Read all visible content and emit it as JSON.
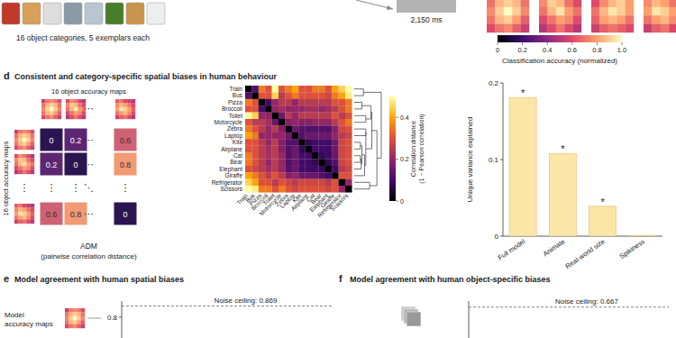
{
  "panel_c": {
    "stimuli_caption": "16 object categories, 5 exemplars each",
    "duration": "2,150 ms",
    "accuracy_maps": [
      [
        [
          0.55,
          0.7,
          0.75,
          0.7,
          0.6
        ],
        [
          0.7,
          0.85,
          0.9,
          0.85,
          0.7
        ],
        [
          0.75,
          0.9,
          1,
          0.9,
          0.75
        ],
        [
          0.7,
          0.85,
          0.9,
          0.8,
          0.65
        ],
        [
          0.6,
          0.7,
          0.75,
          0.65,
          0.55
        ]
      ],
      [
        [
          0.6,
          0.75,
          0.7,
          0.6,
          0.5
        ],
        [
          0.75,
          0.9,
          0.85,
          0.7,
          0.6
        ],
        [
          0.7,
          0.85,
          0.95,
          0.8,
          0.7
        ],
        [
          0.6,
          0.7,
          0.8,
          0.75,
          0.6
        ],
        [
          0.5,
          0.6,
          0.7,
          0.6,
          0.5
        ]
      ],
      [
        [
          0.5,
          0.6,
          0.7,
          0.75,
          0.7
        ],
        [
          0.6,
          0.75,
          0.85,
          0.9,
          0.8
        ],
        [
          0.7,
          0.85,
          0.95,
          0.9,
          0.8
        ],
        [
          0.65,
          0.8,
          0.85,
          0.8,
          0.7
        ],
        [
          0.55,
          0.65,
          0.7,
          0.65,
          0.6
        ]
      ],
      [
        [
          0.65,
          0.7,
          0.6,
          0.55,
          0.5
        ],
        [
          0.75,
          0.85,
          0.8,
          0.7,
          0.6
        ],
        [
          0.8,
          0.95,
          0.9,
          0.8,
          0.65
        ],
        [
          0.7,
          0.8,
          0.85,
          0.75,
          0.6
        ],
        [
          0.55,
          0.65,
          0.7,
          0.6,
          0.5
        ]
      ]
    ],
    "colorbar": {
      "label": "Classification accuracy (normalized)",
      "range": [
        0,
        1
      ],
      "ticks": [
        0,
        0.2,
        0.4,
        0.6,
        0.8,
        {
          "value": 1,
          "label": "1.0"
        }
      ]
    }
  },
  "panel_d": {
    "letter": "d",
    "title": "Consistent and category-specific spatial biases in human behaviour",
    "adm_schematic": {
      "top_label": "16 object accuracy maps",
      "side_label": "16 object accuracy maps",
      "rows": [
        [
          0,
          0.2,
          0.6
        ],
        [
          0.2,
          0,
          0.8
        ],
        [
          0.6,
          0.8,
          0
        ]
      ],
      "ellipsis_h": "⋯",
      "ellipsis_v": "⋮",
      "ellipsis_d": "⋱",
      "caption": "ADM",
      "caption_sub": "(pairwise correlation distance)"
    }
  },
  "panel_e": {
    "letter": "e",
    "title": "Model agreement with human spatial biases",
    "side_label": [
      "Model",
      "accuracy maps"
    ]
  },
  "panel_f": {
    "letter": "f",
    "title": "Model agreement with human object-specific biases"
  },
  "chart_data": [
    {
      "type": "heatmap",
      "categories": [
        "Train",
        "Bus",
        "Pizza",
        "Broccoli",
        "Toilet",
        "Motorcycle",
        "Zebra",
        "Laptop",
        "Kite",
        "Airplane",
        "Cat",
        "Bear",
        "Elephant",
        "Giraffe",
        "Refrigerator",
        "Scissors"
      ],
      "values": [
        [
          0,
          0.12,
          0.35,
          0.3,
          0.5,
          0.3,
          0.35,
          0.4,
          0.3,
          0.3,
          0.35,
          0.35,
          0.3,
          0.4,
          0.45,
          0.5
        ],
        [
          0.12,
          0,
          0.3,
          0.3,
          0.45,
          0.25,
          0.3,
          0.35,
          0.3,
          0.3,
          0.3,
          0.3,
          0.28,
          0.35,
          0.4,
          0.48
        ],
        [
          0.35,
          0.3,
          0,
          0.1,
          0.2,
          0.25,
          0.25,
          0.2,
          0.25,
          0.25,
          0.25,
          0.25,
          0.25,
          0.3,
          0.3,
          0.35
        ],
        [
          0.3,
          0.3,
          0.1,
          0,
          0.2,
          0.22,
          0.2,
          0.2,
          0.2,
          0.22,
          0.22,
          0.2,
          0.22,
          0.25,
          0.3,
          0.35
        ],
        [
          0.5,
          0.45,
          0.2,
          0.2,
          0,
          0.15,
          0.25,
          0.2,
          0.25,
          0.25,
          0.25,
          0.25,
          0.25,
          0.3,
          0.25,
          0.3
        ],
        [
          0.3,
          0.25,
          0.25,
          0.22,
          0.15,
          0,
          0.18,
          0.2,
          0.18,
          0.18,
          0.2,
          0.2,
          0.2,
          0.25,
          0.3,
          0.35
        ],
        [
          0.35,
          0.3,
          0.25,
          0.2,
          0.25,
          0.18,
          0,
          0.15,
          0.12,
          0.12,
          0.12,
          0.12,
          0.12,
          0.18,
          0.28,
          0.3
        ],
        [
          0.4,
          0.35,
          0.2,
          0.2,
          0.2,
          0.2,
          0.15,
          0,
          0.12,
          0.15,
          0.15,
          0.15,
          0.15,
          0.2,
          0.25,
          0.28
        ],
        [
          0.3,
          0.3,
          0.25,
          0.2,
          0.25,
          0.18,
          0.12,
          0.12,
          0,
          0.08,
          0.1,
          0.1,
          0.1,
          0.15,
          0.28,
          0.3
        ],
        [
          0.3,
          0.3,
          0.25,
          0.22,
          0.25,
          0.18,
          0.12,
          0.15,
          0.08,
          0,
          0.1,
          0.1,
          0.1,
          0.15,
          0.28,
          0.3
        ],
        [
          0.35,
          0.3,
          0.25,
          0.22,
          0.25,
          0.2,
          0.12,
          0.15,
          0.1,
          0.1,
          0,
          0.08,
          0.1,
          0.15,
          0.28,
          0.3
        ],
        [
          0.35,
          0.3,
          0.25,
          0.2,
          0.25,
          0.2,
          0.12,
          0.15,
          0.1,
          0.1,
          0.08,
          0,
          0.08,
          0.12,
          0.28,
          0.3
        ],
        [
          0.3,
          0.28,
          0.25,
          0.22,
          0.25,
          0.2,
          0.12,
          0.15,
          0.1,
          0.1,
          0.1,
          0.08,
          0,
          0.1,
          0.25,
          0.28
        ],
        [
          0.4,
          0.35,
          0.3,
          0.25,
          0.3,
          0.25,
          0.18,
          0.2,
          0.15,
          0.15,
          0.15,
          0.12,
          0.1,
          0,
          0.3,
          0.3
        ],
        [
          0.45,
          0.4,
          0.3,
          0.3,
          0.25,
          0.3,
          0.28,
          0.25,
          0.28,
          0.28,
          0.28,
          0.28,
          0.25,
          0.3,
          0,
          0.2
        ],
        [
          0.5,
          0.48,
          0.35,
          0.35,
          0.3,
          0.35,
          0.3,
          0.28,
          0.3,
          0.3,
          0.3,
          0.3,
          0.28,
          0.3,
          0.2,
          0
        ]
      ],
      "colorbar": {
        "label": [
          "Correlation distance",
          "(1 − Pearson correlation)"
        ],
        "range": [
          0,
          0.5
        ],
        "ticks": [
          0,
          0.2,
          0.4
        ]
      }
    },
    {
      "type": "bar",
      "categories": [
        "Full model",
        "Animate",
        "Real-world size",
        "Spikiness"
      ],
      "values": [
        0.181,
        0.108,
        0.039,
        0.001
      ],
      "significance": [
        "*",
        "*",
        "*",
        null
      ],
      "ylabel": "Unique variance explained",
      "ylim": [
        0,
        0.2
      ],
      "yticks": [
        0,
        0.1,
        0.2
      ],
      "color": "#fbe6a8"
    },
    {
      "type": "bar",
      "ylim": [
        0.67,
        0.9
      ],
      "yticks": [
        0.8
      ],
      "tick_labels": "y",
      "noise_ceiling": {
        "value": 0.869,
        "label": "Noise ceiling: 0.869"
      }
    },
    {
      "type": "bar",
      "ylim": [
        0.5,
        0.7
      ],
      "yticks": [],
      "tick_labels": false,
      "noise_ceiling": {
        "value": 0.667,
        "label": "Noise ceiling: 0.667"
      }
    }
  ]
}
